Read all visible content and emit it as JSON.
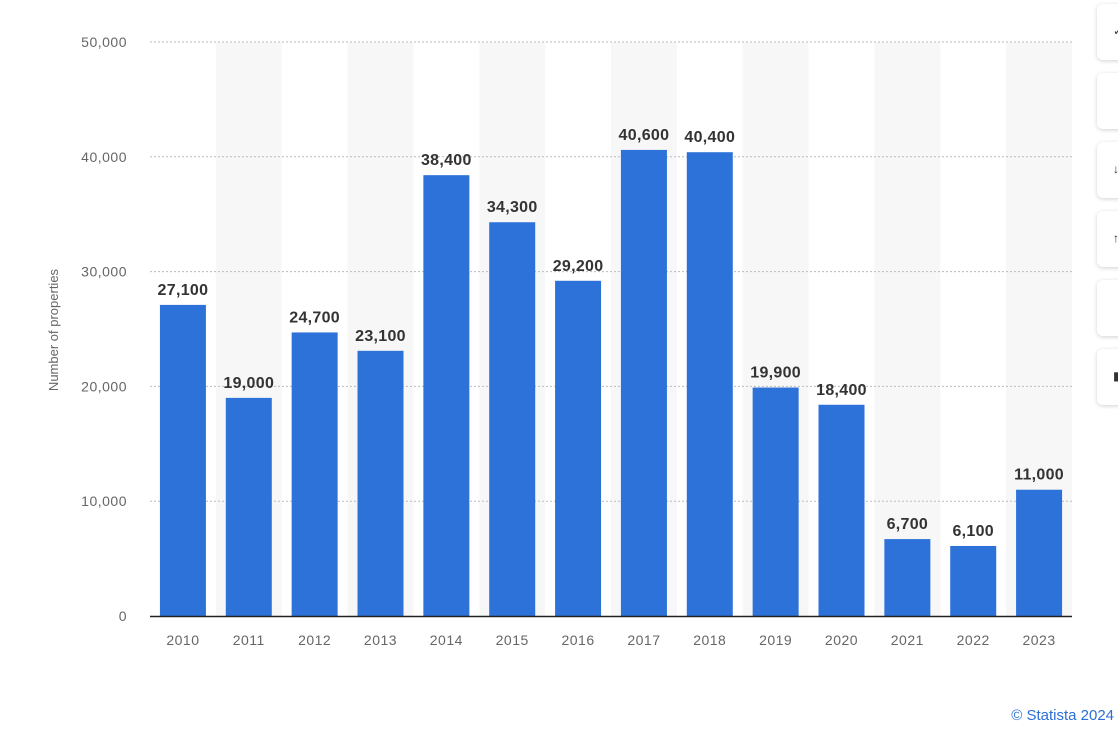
{
  "chart_data": {
    "type": "bar",
    "categories": [
      "2010",
      "2011",
      "2012",
      "2013",
      "2014",
      "2015",
      "2016",
      "2017",
      "2018",
      "2019",
      "2020",
      "2021",
      "2022",
      "2023"
    ],
    "values": [
      27100,
      19000,
      24700,
      23100,
      38400,
      34300,
      29200,
      40600,
      40400,
      19900,
      18400,
      6700,
      6100,
      11000
    ],
    "data_labels": [
      "27,100",
      "19,000",
      "24,700",
      "23,100",
      "38,400",
      "34,300",
      "29,200",
      "40,600",
      "40,400",
      "19,900",
      "18,400",
      "6,700",
      "6,100",
      "11,000"
    ],
    "ylabel": "Number of properties",
    "xlabel": "",
    "ylim": [
      0,
      50000
    ],
    "yticks": [
      0,
      10000,
      20000,
      30000,
      40000,
      50000
    ],
    "ytick_labels": [
      "0",
      "10,000",
      "20,000",
      "30,000",
      "40,000",
      "50,000"
    ],
    "grid": true,
    "bar_color": "#2d72d9",
    "band_color": "#f7f7f7"
  },
  "side_buttons": [
    {
      "icon": "bell-icon"
    },
    {
      "icon": "star-icon"
    },
    {
      "icon": "download-icon"
    },
    {
      "icon": "share-icon"
    },
    {
      "icon": "code-icon"
    },
    {
      "icon": "print-icon"
    }
  ],
  "credit": "© Statista 2024"
}
